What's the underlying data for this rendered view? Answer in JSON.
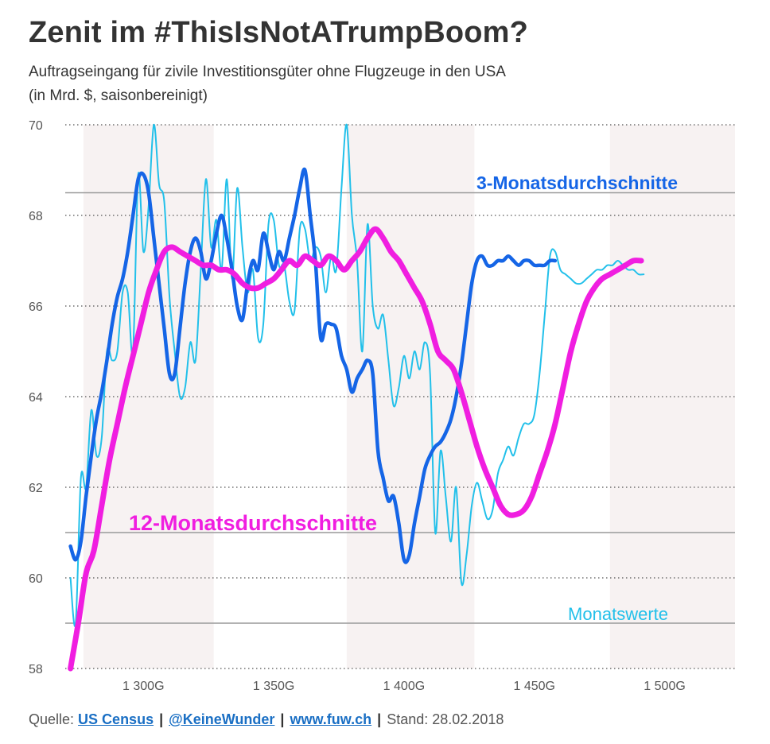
{
  "header": {
    "title": "Zenit im #ThisIsNotATrumpBoom?",
    "subtitle_line1": "Auftragseingang für zivile Investitionsgüter ohne Flugzeuge in den USA",
    "subtitle_line2": "(in Mrd. $, saisonbereinigt)"
  },
  "footer": {
    "prefix": "Quelle: ",
    "source_label": "US Census",
    "twitter_label": "@KeineWunder",
    "site_label": "www.fuw.ch",
    "stand": "Stand: 28.02.2018",
    "separator": "|"
  },
  "colors": {
    "monthly": "#22c0ea",
    "avg3": "#1565e6",
    "avg12": "#f01ee0",
    "band": "#f7f2f2",
    "refline": "#999999",
    "grid": "#555555"
  },
  "chart_data": {
    "type": "line",
    "title": "Zenit im #ThisIsNotATrumpBoom?",
    "xlabel": "",
    "ylabel": "in Mrd. $",
    "xlim": [
      1270,
      1527
    ],
    "ylim": [
      58,
      70
    ],
    "x_ticks": [
      {
        "value": 1300,
        "label": "1 300G"
      },
      {
        "value": 1350,
        "label": "1 350G"
      },
      {
        "value": 1400,
        "label": "1 400G"
      },
      {
        "value": 1450,
        "label": "1 450G"
      },
      {
        "value": 1500,
        "label": "1 500G"
      }
    ],
    "y_ticks": [
      58,
      60,
      62,
      64,
      66,
      68,
      70
    ],
    "grid": "horizontal dotted",
    "shaded_bands": [
      [
        1277,
        1327
      ],
      [
        1378,
        1427
      ],
      [
        1479,
        1527
      ]
    ],
    "reference_lines": [
      68.5,
      61,
      59
    ],
    "annotations": [
      {
        "text": "3-Monatsdurchschnitte",
        "series": "3-Monatsdurchschnitte"
      },
      {
        "text": "12-Monatsdurchschnitte",
        "series": "12-Monatsdurchschnitte"
      },
      {
        "text": "Monatswerte",
        "series": "Monatswerte"
      }
    ],
    "series": [
      {
        "name": "Monatswerte",
        "x": [
          1272,
          1274,
          1276,
          1278,
          1280,
          1282,
          1284,
          1286,
          1288,
          1290,
          1292,
          1294,
          1296,
          1298,
          1300,
          1302,
          1304,
          1306,
          1308,
          1310,
          1312,
          1314,
          1316,
          1318,
          1320,
          1322,
          1324,
          1326,
          1328,
          1330,
          1332,
          1334,
          1336,
          1338,
          1340,
          1342,
          1344,
          1346,
          1348,
          1350,
          1352,
          1354,
          1356,
          1358,
          1360,
          1362,
          1364,
          1366,
          1368,
          1370,
          1372,
          1374,
          1376,
          1378,
          1380,
          1382,
          1384,
          1386,
          1388,
          1390,
          1392,
          1394,
          1396,
          1398,
          1400,
          1402,
          1404,
          1406,
          1408,
          1410,
          1412,
          1414,
          1416,
          1418,
          1420,
          1422,
          1424,
          1426,
          1428,
          1430,
          1432,
          1434,
          1436,
          1438,
          1440,
          1442,
          1444,
          1446,
          1448,
          1450,
          1452,
          1454,
          1456,
          1458,
          1460,
          1462,
          1464,
          1466,
          1468,
          1470,
          1472,
          1474,
          1476,
          1478,
          1480,
          1482,
          1484,
          1486,
          1488,
          1490,
          1492
        ],
        "values": [
          60.0,
          59.0,
          62.2,
          62.0,
          63.7,
          62.7,
          63.1,
          65.0,
          64.8,
          65.0,
          66.3,
          66.3,
          65.0,
          68.9,
          67.2,
          68.2,
          70.0,
          68.7,
          68.3,
          66.2,
          65.0,
          64.0,
          64.2,
          65.2,
          64.8,
          66.8,
          68.8,
          67.3,
          67.9,
          66.8,
          68.8,
          66.6,
          68.6,
          67.3,
          66.3,
          66.8,
          65.3,
          65.6,
          67.8,
          67.9,
          66.9,
          66.9,
          66.1,
          65.9,
          67.7,
          67.7,
          67.0,
          67.3,
          67.1,
          66.3,
          67.1,
          66.8,
          68.6,
          70.0,
          68.0,
          67.0,
          65.0,
          67.8,
          66.0,
          65.5,
          65.8,
          64.8,
          63.8,
          64.2,
          64.9,
          64.4,
          65.0,
          64.6,
          65.2,
          64.5,
          61.0,
          62.8,
          61.8,
          60.8,
          62.0,
          59.9,
          60.5,
          61.6,
          62.1,
          61.7,
          61.3,
          61.5,
          62.3,
          62.6,
          62.9,
          62.7,
          63.1,
          63.4,
          63.4,
          63.6,
          64.5,
          65.8,
          67.1,
          67.2,
          66.8,
          66.7,
          66.6,
          66.5,
          66.5,
          66.6,
          66.7,
          66.8,
          66.8,
          66.9,
          66.9,
          67.0,
          66.9,
          66.8,
          66.8,
          66.7,
          66.7
        ]
      },
      {
        "name": "3-Monatsdurchschnitte",
        "x": [
          1272,
          1274,
          1276,
          1278,
          1280,
          1282,
          1284,
          1286,
          1288,
          1290,
          1292,
          1294,
          1296,
          1298,
          1300,
          1302,
          1304,
          1306,
          1308,
          1310,
          1312,
          1314,
          1316,
          1318,
          1320,
          1322,
          1324,
          1326,
          1328,
          1330,
          1332,
          1334,
          1336,
          1338,
          1340,
          1342,
          1344,
          1346,
          1348,
          1350,
          1352,
          1354,
          1356,
          1358,
          1360,
          1362,
          1364,
          1366,
          1368,
          1370,
          1372,
          1374,
          1376,
          1378,
          1380,
          1382,
          1384,
          1386,
          1388,
          1390,
          1392,
          1394,
          1396,
          1398,
          1400,
          1402,
          1404,
          1406,
          1408,
          1410,
          1412,
          1414,
          1416,
          1418,
          1420,
          1422,
          1424,
          1426,
          1428,
          1430,
          1432,
          1434,
          1436,
          1438,
          1440,
          1442,
          1444,
          1446,
          1448,
          1450,
          1452,
          1454,
          1456,
          1458
        ],
        "values": [
          60.7,
          60.4,
          60.8,
          61.8,
          62.7,
          63.5,
          64.1,
          64.8,
          65.6,
          66.2,
          66.6,
          67.2,
          68.0,
          68.8,
          68.9,
          68.5,
          67.5,
          66.5,
          65.5,
          64.5,
          64.5,
          65.5,
          66.5,
          67.2,
          67.5,
          67.2,
          66.6,
          67.0,
          67.6,
          68.0,
          67.5,
          66.8,
          66.0,
          65.7,
          66.5,
          67.0,
          66.8,
          67.6,
          67.2,
          66.8,
          67.2,
          67.0,
          67.5,
          68.0,
          68.6,
          69.0,
          68.0,
          67.0,
          65.3,
          65.6,
          65.6,
          65.5,
          64.9,
          64.6,
          64.1,
          64.4,
          64.6,
          64.8,
          64.5,
          62.8,
          62.2,
          61.7,
          61.8,
          61.2,
          60.4,
          60.5,
          61.2,
          61.8,
          62.4,
          62.7,
          62.9,
          63.0,
          63.2,
          63.5,
          64.0,
          64.7,
          65.6,
          66.5,
          67.0,
          67.1,
          66.9,
          66.9,
          67.0,
          67.0,
          67.1,
          67.0,
          66.9,
          67.0,
          67.0,
          66.9,
          66.9,
          66.9,
          67.0,
          67.0
        ]
      },
      {
        "name": "12-Monatsdurchschnitte",
        "x": [
          1272,
          1275,
          1278,
          1281,
          1284,
          1287,
          1290,
          1293,
          1296,
          1299,
          1302,
          1305,
          1308,
          1311,
          1314,
          1317,
          1320,
          1323,
          1326,
          1329,
          1332,
          1335,
          1338,
          1341,
          1344,
          1347,
          1350,
          1353,
          1356,
          1359,
          1362,
          1365,
          1368,
          1371,
          1374,
          1377,
          1380,
          1383,
          1386,
          1389,
          1392,
          1395,
          1398,
          1401,
          1404,
          1407,
          1410,
          1413,
          1416,
          1419,
          1422,
          1425,
          1428,
          1431,
          1434,
          1437,
          1440,
          1443,
          1446,
          1449,
          1452,
          1455,
          1458,
          1461,
          1464,
          1467,
          1470,
          1473,
          1476,
          1479,
          1482,
          1485,
          1488,
          1491
        ],
        "values": [
          58.0,
          59.0,
          60.1,
          60.6,
          61.6,
          62.6,
          63.4,
          64.2,
          64.9,
          65.6,
          66.3,
          66.8,
          67.2,
          67.3,
          67.2,
          67.1,
          67.0,
          66.9,
          66.9,
          66.8,
          66.8,
          66.7,
          66.5,
          66.4,
          66.4,
          66.5,
          66.6,
          66.8,
          67.0,
          66.9,
          67.1,
          67.0,
          66.9,
          67.1,
          67.0,
          66.8,
          67.0,
          67.2,
          67.5,
          67.7,
          67.5,
          67.2,
          67.0,
          66.7,
          66.4,
          66.1,
          65.6,
          65.0,
          64.8,
          64.6,
          64.1,
          63.5,
          62.9,
          62.4,
          62.0,
          61.6,
          61.4,
          61.4,
          61.5,
          61.8,
          62.3,
          62.8,
          63.4,
          64.2,
          65.0,
          65.6,
          66.1,
          66.4,
          66.6,
          66.7,
          66.8,
          66.9,
          67.0,
          67.0
        ]
      }
    ]
  }
}
